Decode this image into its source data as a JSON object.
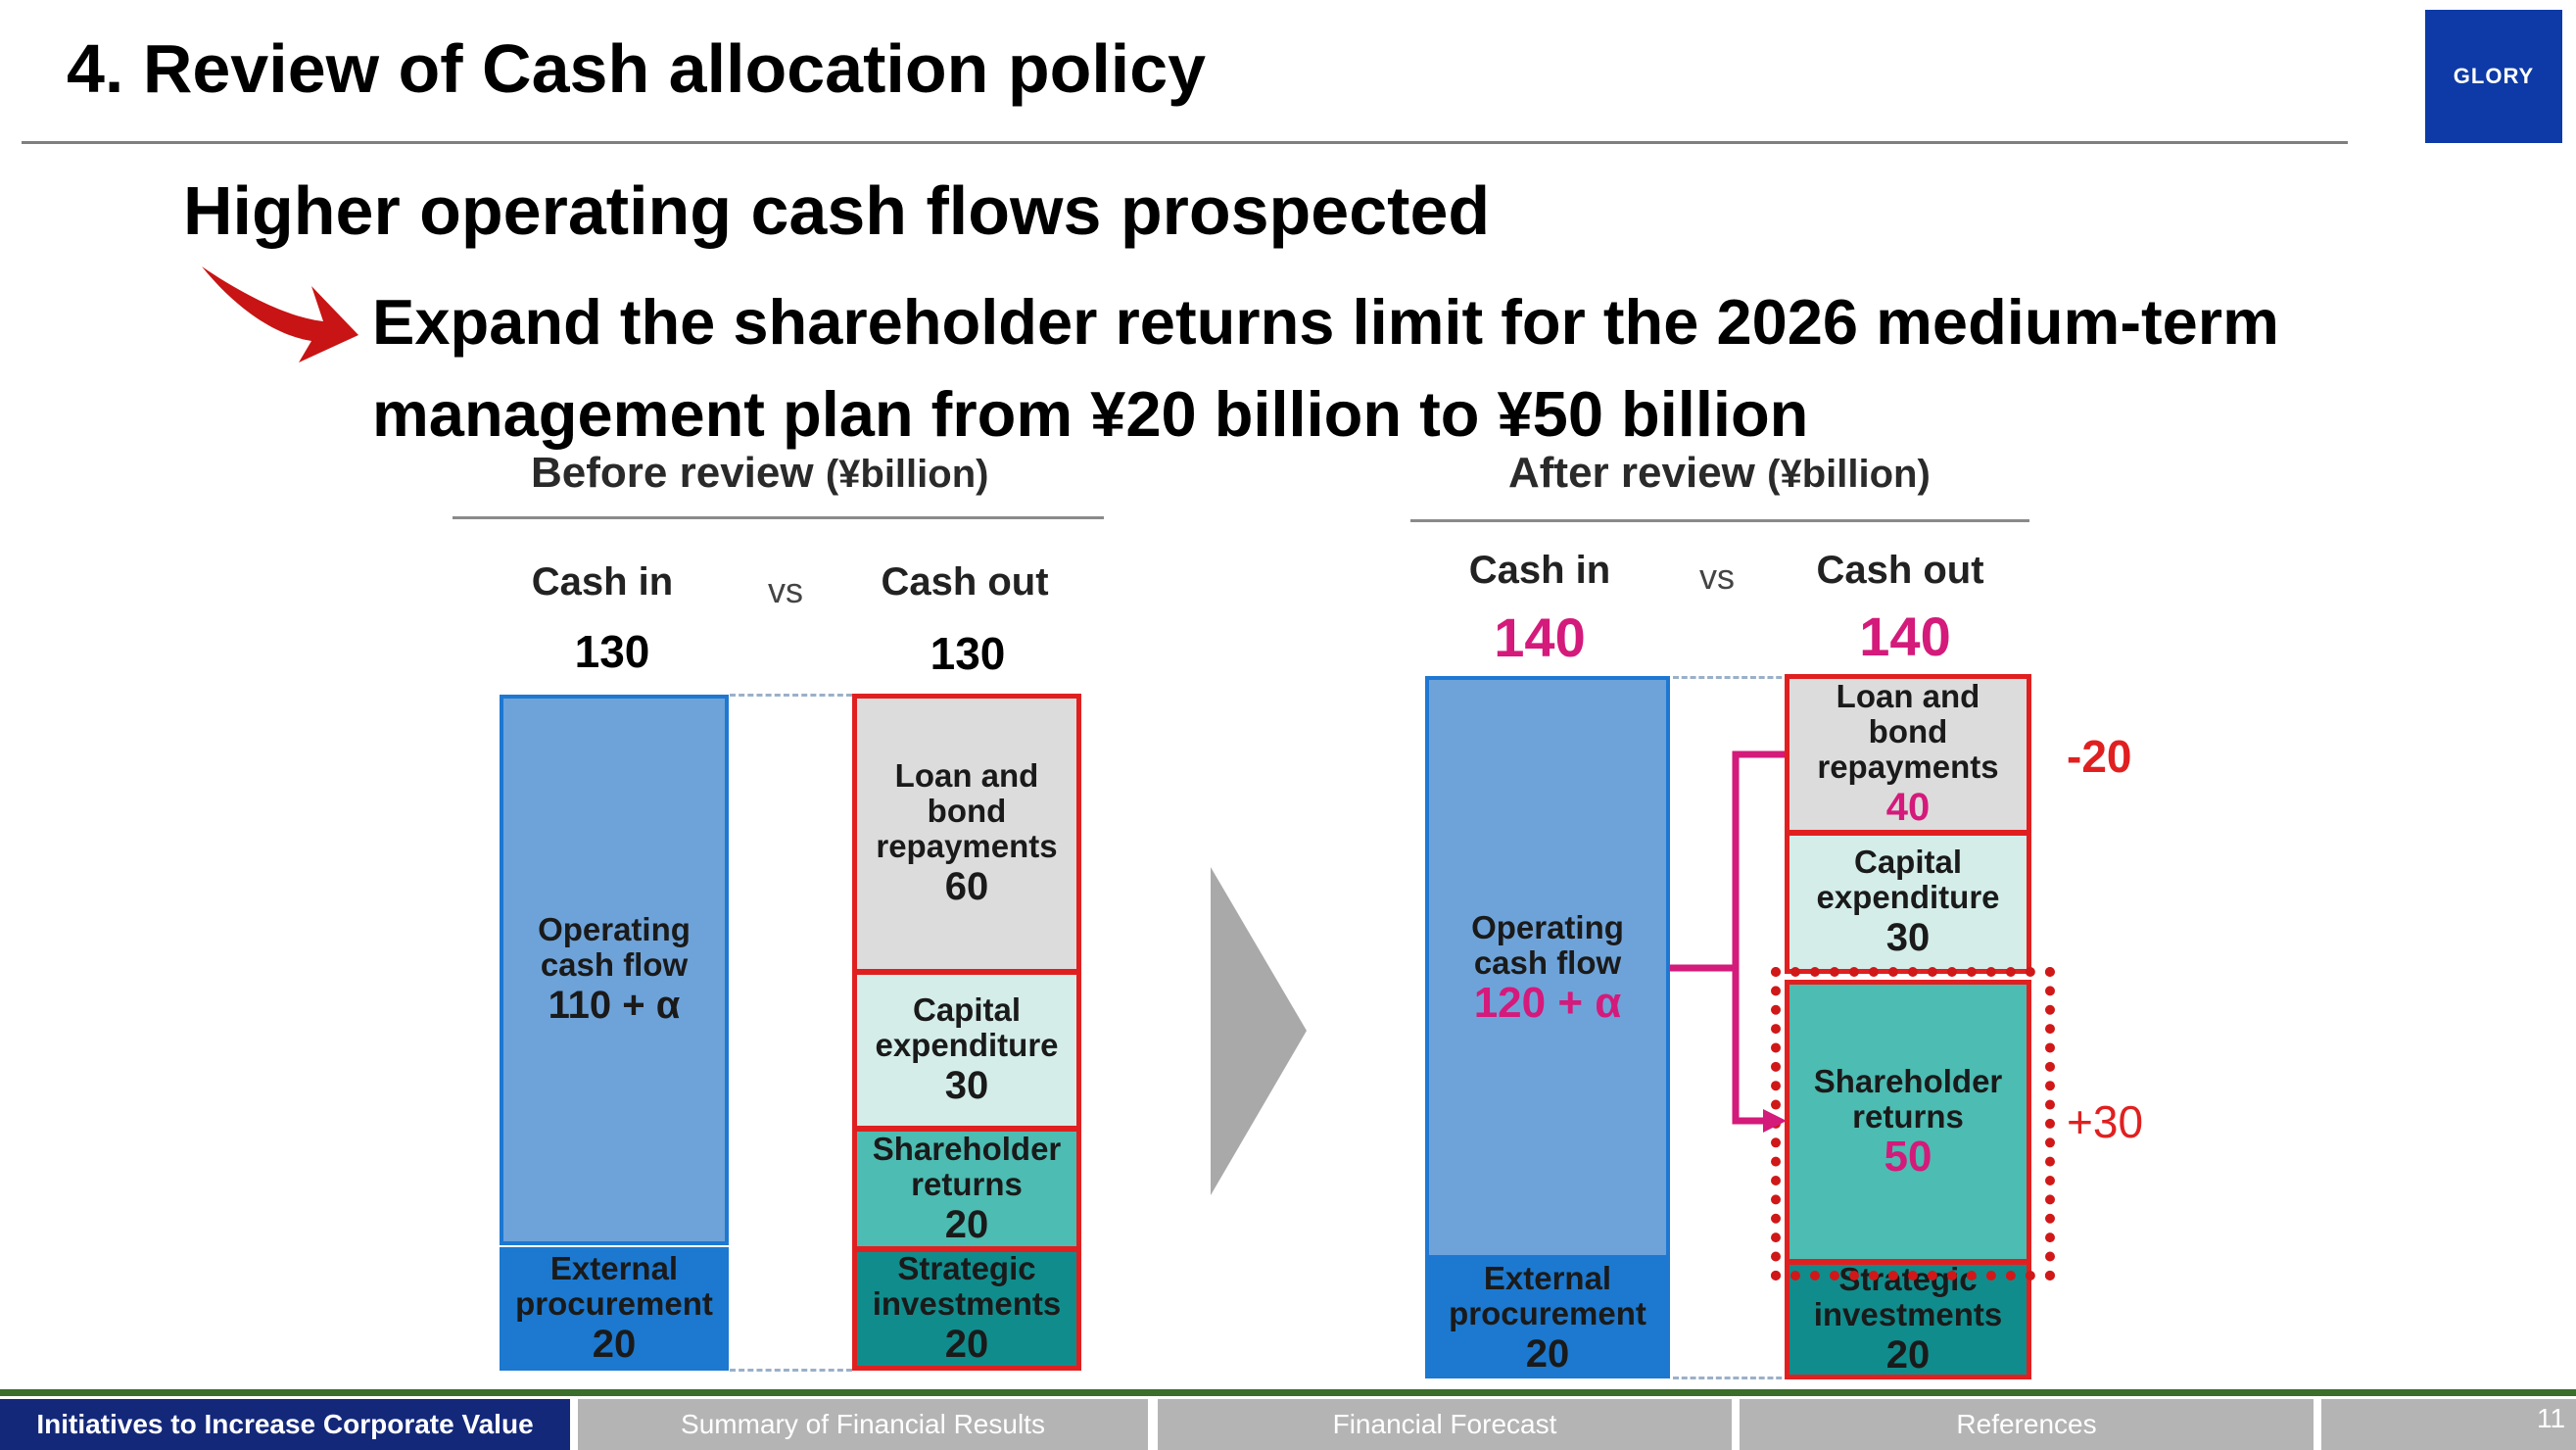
{
  "header": {
    "title": "4. Review of Cash allocation policy",
    "logo_text": "GLORY"
  },
  "message": {
    "headline": "Higher operating cash flows prospected",
    "sub_line1": "Expand the shareholder returns limit for the 2026 medium-term",
    "sub_line2": "management plan from ¥20 billion to ¥50 billion"
  },
  "chart_data": [
    {
      "type": "stacked_bar",
      "title": "Before review",
      "unit": "(¥billion)",
      "cash_in": {
        "label": "Cash in",
        "total": "130",
        "segments": [
          {
            "label_line1": "Operating",
            "label_line2": "cash flow",
            "value": "110 + α"
          },
          {
            "label_line1": "External",
            "label_line2": "procurement",
            "value": "20"
          }
        ]
      },
      "vs": "vs",
      "cash_out": {
        "label": "Cash out",
        "total": "130",
        "segments": [
          {
            "label_line1": "Loan and",
            "label_line2": "bond",
            "label_line3": "repayments",
            "value": "60"
          },
          {
            "label_line1": "Capital",
            "label_line2": "expenditure",
            "value": "30"
          },
          {
            "label_line1": "Shareholder",
            "label_line2": "returns",
            "value": "20"
          },
          {
            "label_line1": "Strategic",
            "label_line2": "investments",
            "value": "20"
          }
        ]
      }
    },
    {
      "type": "stacked_bar",
      "title": "After review",
      "unit": "(¥billion)",
      "cash_in": {
        "label": "Cash in",
        "total": "140",
        "segments": [
          {
            "label_line1": "Operating",
            "label_line2": "cash flow",
            "value": "120 + α"
          },
          {
            "label_line1": "External",
            "label_line2": "procurement",
            "value": "20"
          }
        ]
      },
      "vs": "vs",
      "cash_out": {
        "label": "Cash out",
        "total": "140",
        "segments": [
          {
            "label_line1": "Loan and",
            "label_line2": "bond",
            "label_line3": "repayments",
            "value": "40"
          },
          {
            "label_line1": "Capital",
            "label_line2": "expenditure",
            "value": "30"
          },
          {
            "label_line1": "Shareholder",
            "label_line2": "returns",
            "value": "50"
          },
          {
            "label_line1": "Strategic",
            "label_line2": "investments",
            "value": "20"
          }
        ]
      },
      "changes": {
        "loan": "-20",
        "shareholder": "+30"
      }
    }
  ],
  "footer": {
    "tabs": [
      "Initiatives to Increase Corporate Value",
      "Summary of Financial Results",
      "Financial Forecast",
      "References"
    ],
    "page_number": "11"
  },
  "colors": {
    "navy": "#14287a",
    "pink": "#d41a7b",
    "red": "#e02020",
    "operating_blue": "#6ea3d9",
    "external_blue": "#1c79cf",
    "shareholder_teal": "#4dbcb2",
    "strategic_teal": "#118c8c"
  }
}
